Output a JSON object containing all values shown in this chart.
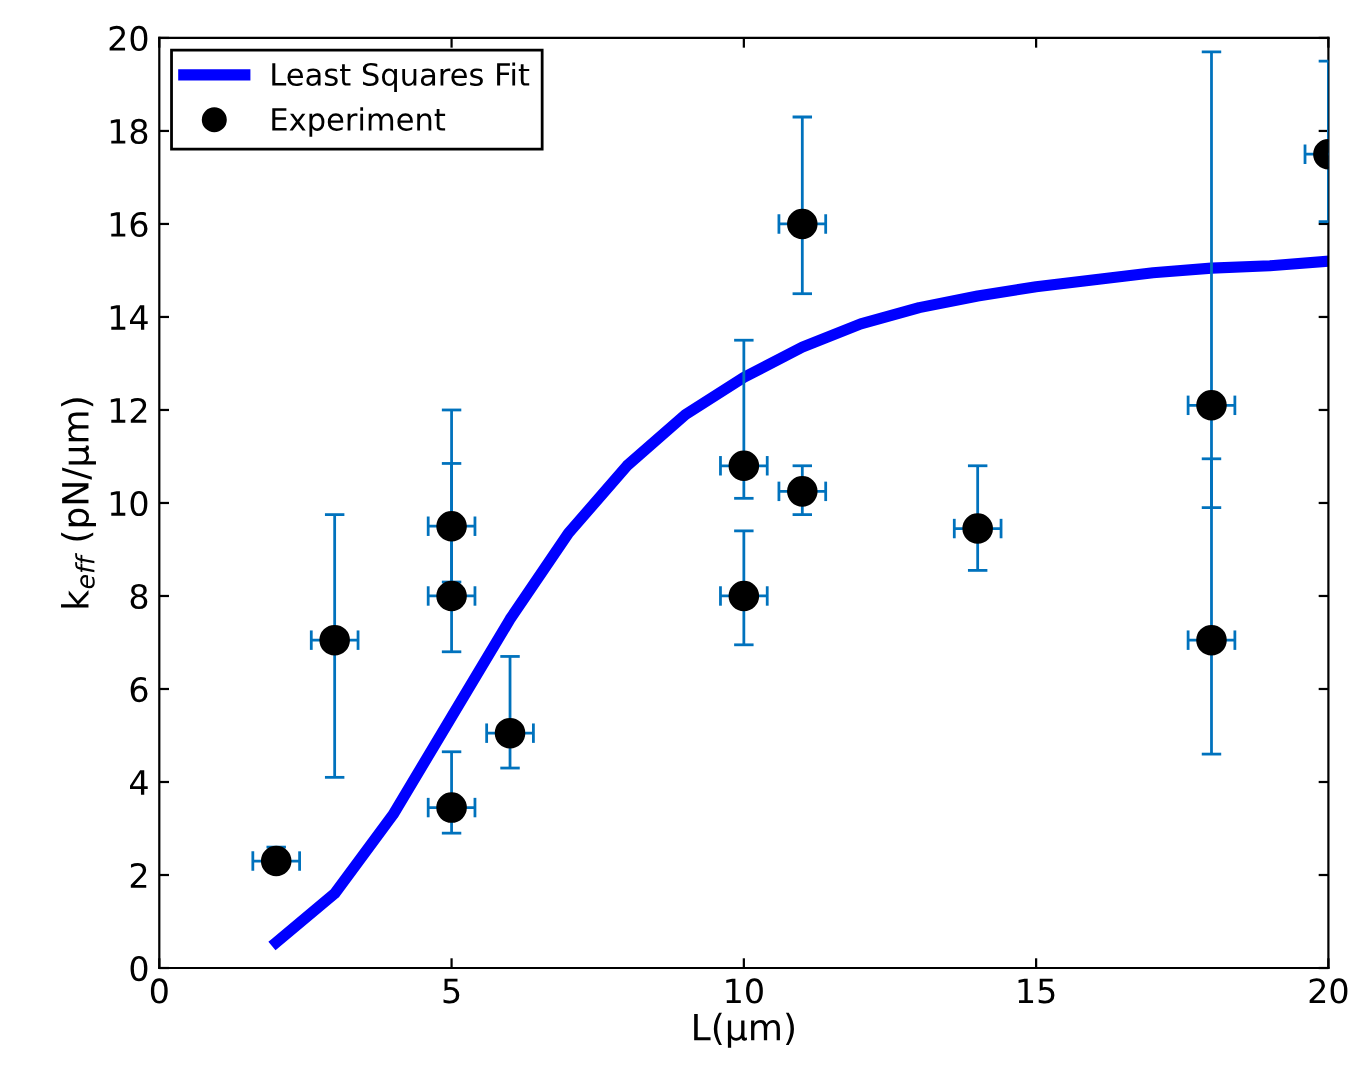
{
  "chart_data": {
    "type": "scatter",
    "xlabel": "L(μm)",
    "ylabel": "k$_{eff}$ (pN/μm)",
    "xlim": [
      0,
      20
    ],
    "ylim": [
      0,
      20
    ],
    "xticks": [
      0,
      5,
      10,
      15,
      20
    ],
    "yticks": [
      0,
      2,
      4,
      6,
      8,
      10,
      12,
      14,
      16,
      18,
      20
    ],
    "grid": false,
    "legend": "top left",
    "series": [
      {
        "name": "Least Squares Fit",
        "type": "line",
        "color": "#0000ff",
        "marker": "none",
        "line_style": "solid",
        "x": [
          2,
          3,
          4,
          5,
          6,
          7,
          8,
          9,
          10,
          11,
          12,
          13,
          14,
          15,
          16,
          17,
          18,
          19,
          20
        ],
        "values": [
          0.55,
          1.6,
          3.3,
          5.4,
          7.5,
          9.35,
          10.8,
          11.9,
          12.7,
          13.35,
          13.85,
          14.2,
          14.45,
          14.65,
          14.8,
          14.95,
          15.05,
          15.1,
          15.2
        ]
      },
      {
        "name": "Experiment",
        "color": "#000000",
        "marker": "circle",
        "x": [
          2,
          3,
          5,
          5,
          5,
          6,
          10,
          10,
          11,
          11,
          14,
          18,
          18,
          20
        ],
        "values": [
          2.3,
          7.05,
          3.45,
          8.0,
          9.5,
          5.05,
          8.0,
          10.8,
          16.0,
          10.25,
          9.45,
          12.1,
          7.05,
          17.5
        ],
        "errors": [
          [
            2.1,
            2.6
          ],
          [
            4.1,
            9.75
          ],
          [
            2.9,
            4.65
          ],
          [
            6.8,
            10.85
          ],
          [
            8.3,
            12.0
          ],
          [
            4.3,
            6.7
          ],
          [
            6.95,
            9.4
          ],
          [
            10.1,
            13.5
          ],
          [
            14.5,
            18.3
          ],
          [
            9.75,
            10.8
          ],
          [
            8.55,
            10.8
          ],
          [
            9.9,
            19.7
          ],
          [
            4.6,
            10.95
          ],
          [
            16.05,
            19.5
          ]
        ],
        "xerrors": [
          0.4,
          0.4,
          0.4,
          0.4,
          0.4,
          0.4,
          0.4,
          0.4,
          0.4,
          0.4,
          0.4,
          0.4,
          0.4,
          0.4
        ]
      }
    ]
  }
}
